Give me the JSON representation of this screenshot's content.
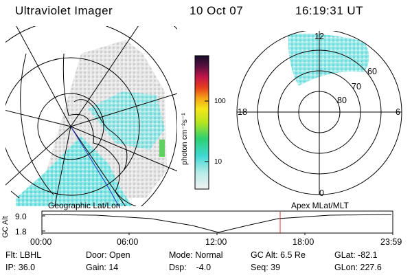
{
  "header": {
    "title": "Ultraviolet Imager",
    "date": "10 Oct 07",
    "time": "16:19:31 UT"
  },
  "colorbar": {
    "unit_label": "photon cm⁻²s⁻¹",
    "ticks": [
      "100",
      "10"
    ]
  },
  "polar_plot": {
    "mlt_labels": {
      "top": "12",
      "left": "18",
      "right": "6",
      "bottom": "0"
    },
    "lat_labels": [
      "60",
      "70",
      "80"
    ]
  },
  "map_labels": {
    "left": "Geographic Lat/Lon",
    "right": "Apex MLat/MLT"
  },
  "altitude_plot": {
    "ylabel": "GC Alt",
    "yticks": [
      "9.0",
      "1.8"
    ],
    "xticks": [
      "00:00",
      "06:00",
      "12:00",
      "18:00",
      "23:59"
    ]
  },
  "status": {
    "flt": "Flt: LBHL",
    "ip": "IP: 36.0",
    "door": "Door: Open",
    "gain": "Gain: 14",
    "mode": "Mode: Normal",
    "dsp": "Dsp:    -4.0",
    "gc_alt": "GC Alt: 6.5 Re",
    "seq": "Seq: 39",
    "glat": "GLat: -82.1",
    "glon": "GLon: 227.6"
  },
  "colors": {
    "aurora_cyan": "#6fe6e8",
    "haze": "#d6d6d6",
    "current_time_marker": "#e23030"
  }
}
